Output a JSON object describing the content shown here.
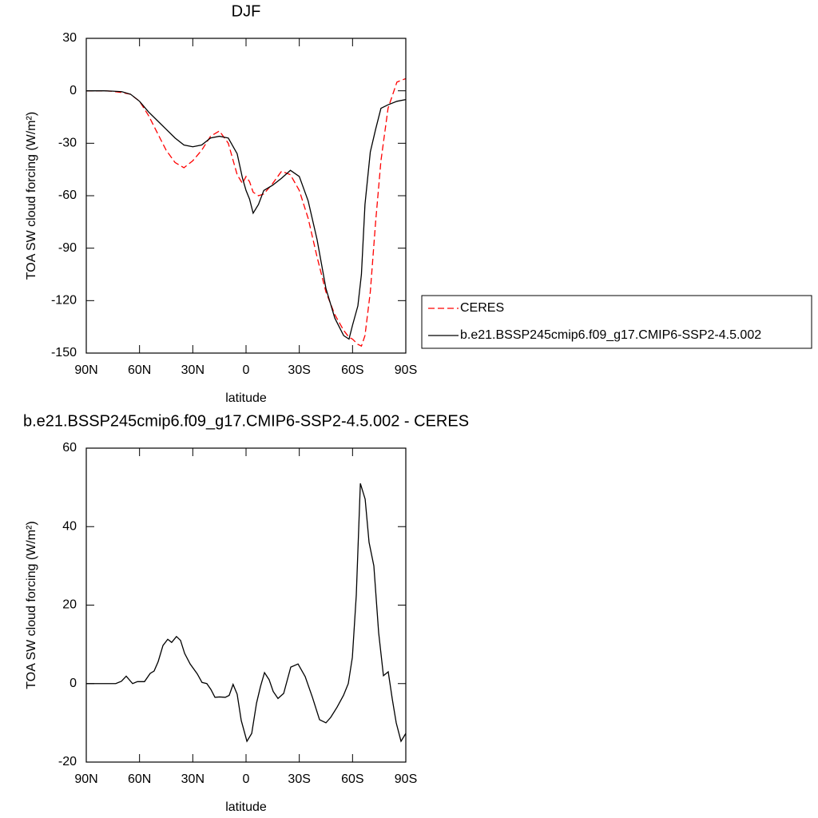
{
  "chart_data": [
    {
      "type": "line",
      "title": "DJF",
      "xlabel": "latitude",
      "ylabel": "TOA SW cloud forcing (W/m²)",
      "x": [
        90,
        85,
        80,
        75,
        70,
        65,
        60,
        55,
        50,
        45,
        40,
        35,
        30,
        25,
        20,
        15,
        10,
        5,
        2,
        0,
        -2,
        -4,
        -7,
        -10,
        -15,
        -20,
        -25,
        -30,
        -35,
        -40,
        -45,
        -50,
        -55,
        -58,
        -60,
        -63,
        -65,
        -67,
        -70,
        -73,
        -76,
        -80,
        -85,
        -90
      ],
      "series": [
        {
          "name": "CERES",
          "color": "#ff0000",
          "dashed": true,
          "values": [
            0,
            0,
            0,
            -0.3,
            -1,
            -2,
            -6,
            -14,
            -24,
            -34,
            -41,
            -44,
            -40,
            -34,
            -26,
            -23,
            -30,
            -48,
            -53,
            -49,
            -52,
            -58,
            -60,
            -59,
            -53,
            -46,
            -48,
            -57,
            -73,
            -95,
            -115,
            -128,
            -137,
            -141,
            -142,
            -145,
            -146,
            -140,
            -115,
            -75,
            -40,
            -10,
            5,
            7
          ]
        },
        {
          "name": "b.e21.BSSP245cmip6.f09_g17.CMIP6-SSP2-4.5.002",
          "color": "#000000",
          "dashed": false,
          "values": [
            0,
            0,
            0,
            -0.2,
            -0.5,
            -2,
            -6,
            -12,
            -17,
            -22,
            -27,
            -31,
            -32,
            -31,
            -27,
            -26,
            -27,
            -36,
            -50,
            -57,
            -62,
            -70,
            -65,
            -57,
            -54,
            -50,
            -45.5,
            -49,
            -63,
            -85,
            -113,
            -130,
            -140,
            -142,
            -134,
            -123,
            -105,
            -65,
            -35,
            -22,
            -10,
            -8,
            -6,
            -5
          ]
        }
      ],
      "xlim": [
        90,
        -90
      ],
      "xticks": [
        {
          "value": 90,
          "label": "90N"
        },
        {
          "value": 60,
          "label": "60N"
        },
        {
          "value": 30,
          "label": "30N"
        },
        0,
        {
          "value": -30,
          "label": "30S"
        },
        {
          "value": -60,
          "label": "60S"
        },
        {
          "value": -90,
          "label": "90S"
        }
      ],
      "ylim": [
        -150,
        30
      ],
      "yticks": [
        -150,
        -120,
        -90,
        -60,
        -30,
        0,
        30
      ],
      "legend": "right"
    },
    {
      "type": "line",
      "title": "b.e21.BSSP245cmip6.f09_g17.CMIP6-SSP2-4.5.002 - CERES",
      "xlabel": "latitude",
      "ylabel": "TOA SW cloud forcing (W/m²)",
      "color": "#000000",
      "x": [
        90,
        73.4,
        70.2,
        67.5,
        63.9,
        61.2,
        57.2,
        54,
        51.8,
        49.5,
        46.8,
        44.1,
        41.9,
        39.2,
        36.9,
        34.6,
        31.5,
        27.5,
        24.8,
        22.1,
        19.8,
        17.5,
        14.9,
        11.7,
        9.5,
        7.3,
        5,
        2.7,
        -0.5,
        -3.2,
        -5.9,
        -8.1,
        -10.4,
        -13,
        -15.3,
        -18,
        -21.2,
        -25.2,
        -29.3,
        -33.3,
        -37.4,
        -41.4,
        -45,
        -47.7,
        -51.3,
        -54.9,
        -57.6,
        -59.9,
        -62.1,
        -64.4,
        -67.1,
        -69.3,
        -72,
        -74.7,
        -77.4,
        -80.1,
        -82.4,
        -84.6,
        -87.3,
        -90
      ],
      "values": [
        0,
        0,
        0.6,
        1.9,
        0,
        0.5,
        0.5,
        2.6,
        3.2,
        5.6,
        9.7,
        11.3,
        10.5,
        12,
        11,
        7.7,
        5,
        2.5,
        0.3,
        0,
        -1.5,
        -3.5,
        -3.4,
        -3.5,
        -3,
        -0.2,
        -2.7,
        -9.4,
        -14.7,
        -12.7,
        -5,
        -0.8,
        2.8,
        1,
        -2,
        -3.8,
        -2.5,
        4.2,
        5,
        1.8,
        -3.5,
        -9.2,
        -10,
        -8.6,
        -6,
        -3,
        0,
        6.7,
        22.5,
        51,
        47,
        36,
        30,
        13,
        2,
        3,
        -4,
        -10,
        -14.7,
        -12.7
      ],
      "xlim": [
        90,
        -90
      ],
      "xticks": [
        {
          "value": 90,
          "label": "90N"
        },
        {
          "value": 60,
          "label": "60N"
        },
        {
          "value": 30,
          "label": "30N"
        },
        0,
        {
          "value": -30,
          "label": "30S"
        },
        {
          "value": -60,
          "label": "60S"
        },
        {
          "value": -90,
          "label": "90S"
        }
      ],
      "ylim": [
        -20,
        60
      ],
      "yticks": [
        -20,
        0,
        20,
        40,
        60
      ]
    }
  ]
}
